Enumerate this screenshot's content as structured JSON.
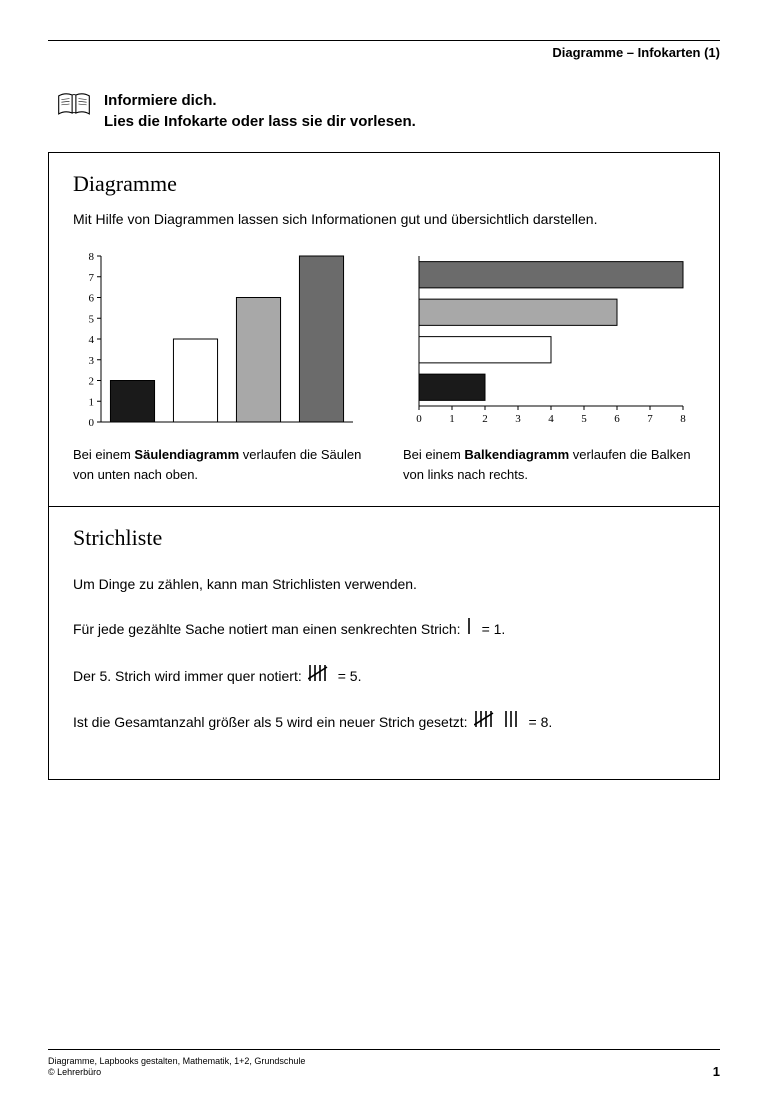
{
  "header": {
    "title": "Diagramme – Infokarten (1)"
  },
  "intro": {
    "line1": "Informiere dich.",
    "line2": "Lies die Infokarte oder lass sie dir vorlesen."
  },
  "card_diagramme": {
    "title": "Diagramme",
    "description": "Mit Hilfe von Diagrammen lassen sich Informationen gut und übersichtlich darstellen.",
    "column_chart": {
      "type": "bar",
      "orientation": "vertical",
      "values": [
        2,
        4,
        6,
        8
      ],
      "bar_colors": [
        "#1a1a1a",
        "#ffffff",
        "#a8a8a8",
        "#6b6b6b"
      ],
      "bar_borders": [
        "#000000",
        "#000000",
        "#000000",
        "#000000"
      ],
      "ylim": [
        0,
        8
      ],
      "yticks": [
        0,
        1,
        2,
        3,
        4,
        5,
        6,
        7,
        8
      ],
      "axis_color": "#000000",
      "tick_length": 4,
      "bar_width": 0.7,
      "label_fontsize": 11,
      "caption_pre": "Bei einem ",
      "caption_bold": "Säulendiagramm",
      "caption_post": " verlaufen die Säulen von unten nach oben."
    },
    "bar_chart": {
      "type": "bar",
      "orientation": "horizontal",
      "values": [
        2,
        4,
        6,
        8
      ],
      "bar_colors": [
        "#1a1a1a",
        "#ffffff",
        "#a8a8a8",
        "#6b6b6b"
      ],
      "bar_borders": [
        "#000000",
        "#000000",
        "#000000",
        "#000000"
      ],
      "xlim": [
        0,
        8
      ],
      "xticks": [
        0,
        1,
        2,
        3,
        4,
        5,
        6,
        7,
        8
      ],
      "axis_color": "#000000",
      "tick_length": 4,
      "bar_width": 0.7,
      "label_fontsize": 11,
      "caption_pre": "Bei einem ",
      "caption_bold": "Balkendiagramm",
      "caption_post": " verlaufen die Balken von links nach rechts."
    }
  },
  "card_strichliste": {
    "title": "Strichliste",
    "line1": "Um Dinge zu zählen, kann man Strichlisten verwenden.",
    "line2_pre": "Für jede gezählte Sache notiert man einen senkrechten Strich: ",
    "line2_tally": 1,
    "line2_post": " = 1.",
    "line3_pre": "Der 5. Strich wird immer quer notiert: ",
    "line3_tally": 5,
    "line3_post": " = 5.",
    "line4_pre": "Ist die Gesamtanzahl größer als 5 wird ein neuer Strich gesetzt: ",
    "line4_tally": 8,
    "line4_post": " = 8."
  },
  "footer": {
    "line1": "Diagramme, Lapbooks gestalten, Mathematik, 1+2, Grundschule",
    "line2": "© Lehrerbüro",
    "page": "1"
  }
}
